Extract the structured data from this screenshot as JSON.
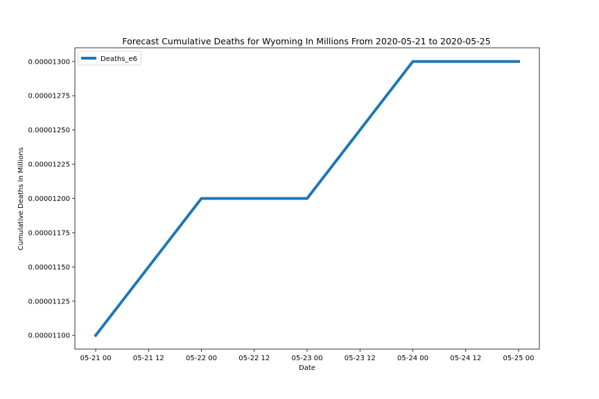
{
  "chart_data": {
    "type": "line",
    "title": "Forecast Cumulative Deaths for Wyoming In Millions From 2020-05-21 to 2020-05-25",
    "xlabel": "Date",
    "ylabel": "Cumulative Deaths In Millions",
    "x": [
      "2020-05-21",
      "2020-05-22",
      "2020-05-23",
      "2020-05-24",
      "2020-05-25"
    ],
    "x_tick_labels": [
      "05-21 00",
      "05-21 12",
      "05-22 00",
      "05-22 12",
      "05-23 00",
      "05-23 12",
      "05-24 00",
      "05-24 12",
      "05-25 00"
    ],
    "y_tick_labels": [
      "0.00001100",
      "0.00001125",
      "0.00001150",
      "0.00001175",
      "0.00001200",
      "0.00001225",
      "0.00001250",
      "0.00001275",
      "0.00001300"
    ],
    "y_ticks": [
      1.1e-05,
      1.125e-05,
      1.15e-05,
      1.175e-05,
      1.2e-05,
      1.225e-05,
      1.25e-05,
      1.275e-05,
      1.3e-05
    ],
    "ylim": [
      1.09e-05,
      1.31e-05
    ],
    "grid": false,
    "legend_position": "top-left",
    "series": [
      {
        "name": "Deaths_e6",
        "color": "#1f77b4",
        "values": [
          1.1e-05,
          1.2e-05,
          1.2e-05,
          1.3e-05,
          1.3e-05
        ]
      }
    ]
  }
}
